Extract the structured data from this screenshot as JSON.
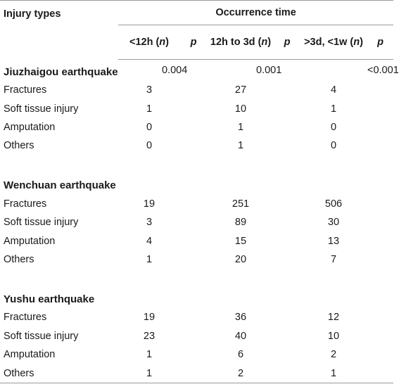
{
  "header": {
    "injury_types": "Injury types",
    "occurrence_time": "Occurrence time",
    "col1_main": "<12h (",
    "col1_n": "n",
    "col1_end": ")",
    "p": "p",
    "col2_main": "12h to 3d (",
    "col2_n": "n",
    "col2_end": ")",
    "col3_main": ">3d, <1w (",
    "col3_n": "n",
    "col3_end": ")"
  },
  "sections": [
    {
      "title": "Jiuzhaigou earthquake",
      "p_values": [
        "0.004",
        "0.001",
        "<0.001"
      ],
      "rows": [
        {
          "type": "Fractures",
          "v": [
            "3",
            "27",
            "4"
          ]
        },
        {
          "type": "Soft tissue injury",
          "v": [
            "1",
            "10",
            "1"
          ]
        },
        {
          "type": "Amputation",
          "v": [
            "0",
            "1",
            "0"
          ]
        },
        {
          "type": "Others",
          "v": [
            "0",
            "1",
            "0"
          ]
        }
      ]
    },
    {
      "title": "Wenchuan earthquake",
      "p_values": [
        "",
        "",
        ""
      ],
      "rows": [
        {
          "type": "Fractures",
          "v": [
            "19",
            "251",
            "506"
          ]
        },
        {
          "type": "Soft tissue injury",
          "v": [
            "3",
            "89",
            "30"
          ]
        },
        {
          "type": "Amputation",
          "v": [
            "4",
            "15",
            "13"
          ]
        },
        {
          "type": "Others",
          "v": [
            "1",
            "20",
            "7"
          ]
        }
      ]
    },
    {
      "title": "Yushu earthquake",
      "p_values": [
        "",
        "",
        ""
      ],
      "rows": [
        {
          "type": "Fractures",
          "v": [
            "19",
            "36",
            "12"
          ]
        },
        {
          "type": "Soft tissue injury",
          "v": [
            "23",
            "40",
            "10"
          ]
        },
        {
          "type": "Amputation",
          "v": [
            "1",
            "6",
            "2"
          ]
        },
        {
          "type": "Others",
          "v": [
            "1",
            "2",
            "1"
          ]
        }
      ]
    }
  ]
}
